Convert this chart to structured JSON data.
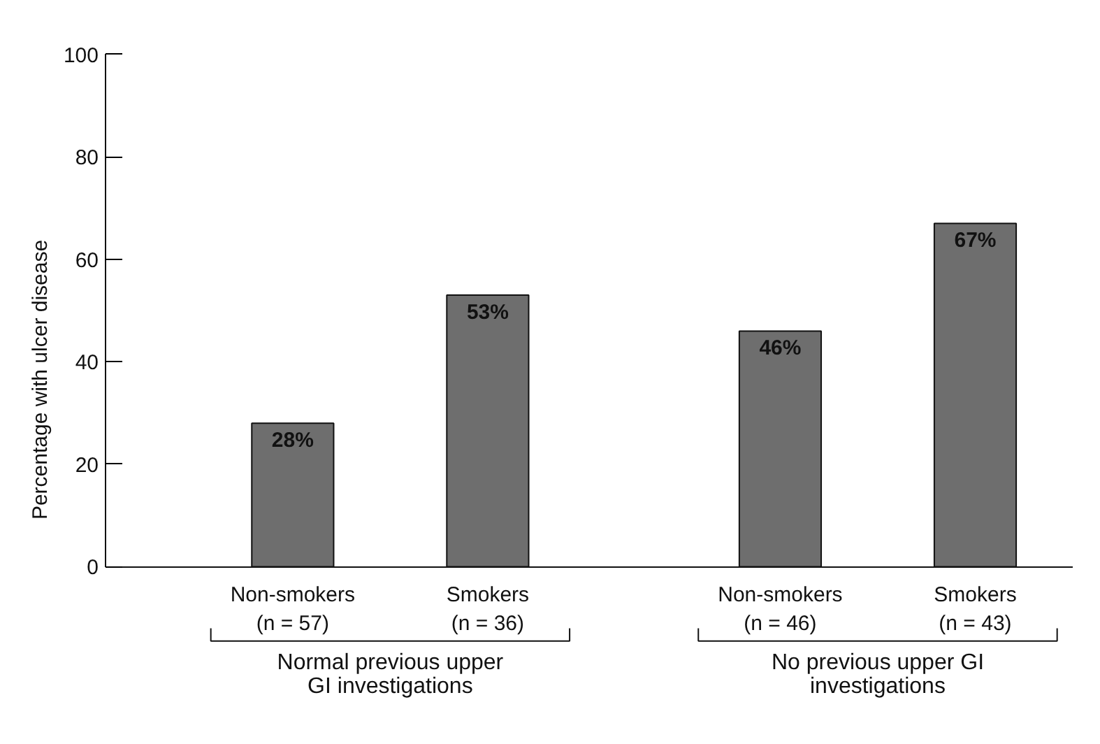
{
  "chart_data": {
    "type": "bar",
    "ylabel": "Percentage with ulcer disease",
    "categories": [
      "Non-smokers\n(n = 57)",
      "Smokers\n(n = 36)",
      "Non-smokers\n(n = 46)",
      "Smokers\n(n = 43)"
    ],
    "values": [
      28,
      53,
      46,
      67
    ],
    "value_labels": [
      "28%",
      "53%",
      "46%",
      "67%"
    ],
    "color": "#6e6e6e",
    "ylim": [
      0,
      100
    ],
    "yticks": [
      0,
      20,
      40,
      60,
      80,
      100
    ],
    "grid": false,
    "annotations": [
      "Normal previous upper\nGI investigations",
      "No previous upper GI\ninvestigations"
    ]
  }
}
